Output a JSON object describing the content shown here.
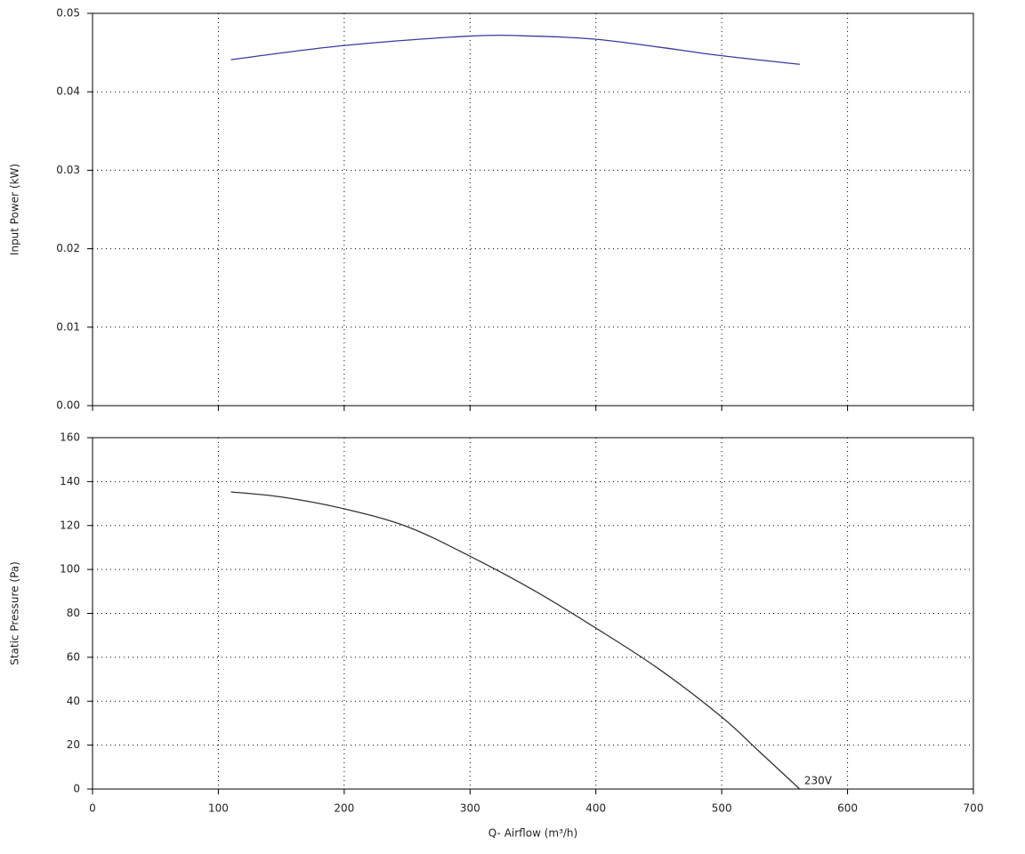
{
  "chart_data": [
    {
      "type": "line",
      "y_label": "Input Power (kW)",
      "x": [
        110,
        200,
        300,
        350,
        400,
        450,
        500,
        562
      ],
      "values": [
        0.0441,
        0.0459,
        0.0471,
        0.0471,
        0.0467,
        0.0457,
        0.0446,
        0.0435
      ],
      "color": "#3a3aa0",
      "xlim": [
        0,
        700
      ],
      "xticks": [
        0,
        100,
        200,
        300,
        400,
        500,
        600,
        700
      ],
      "ylim": [
        0,
        0.05
      ],
      "yticks": [
        {
          "value": 0,
          "label": "0.00"
        },
        0.01,
        0.02,
        0.03,
        0.04,
        0.05
      ],
      "grid": true
    },
    {
      "type": "line",
      "y_label": "Static Pressure (Pa)",
      "x_label": "Q- Airflow (m³/h)",
      "x": [
        110,
        150,
        200,
        250,
        300,
        350,
        400,
        450,
        500,
        530,
        562
      ],
      "values": [
        135.3,
        133,
        127.6,
        119.5,
        106,
        90.7,
        73.3,
        54.7,
        32.8,
        17,
        0
      ],
      "color": "#333333",
      "annotation": "230V",
      "xlim": [
        0,
        700
      ],
      "xticks": [
        0,
        100,
        200,
        300,
        400,
        500,
        600,
        700
      ],
      "ylim": [
        0,
        160
      ],
      "yticks": [
        0,
        20,
        40,
        60,
        80,
        100,
        120,
        140,
        160
      ],
      "grid": true
    }
  ]
}
